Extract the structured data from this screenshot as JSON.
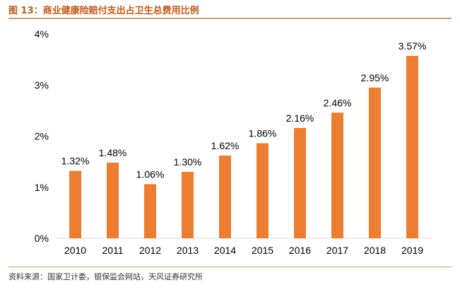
{
  "header": {
    "title": "图 13：商业健康险赔付支出占卫生总费用比例"
  },
  "footer": {
    "source": "资料来源：国家卫计委，银保监会网站，天风证券研究所"
  },
  "colors": {
    "bar": "#ed7d31",
    "title": "#c25a1a",
    "rule": "#c8a070"
  },
  "chart_data": {
    "type": "bar",
    "title": "",
    "xlabel": "",
    "ylabel": "",
    "categories": [
      "2010",
      "2011",
      "2012",
      "2013",
      "2014",
      "2015",
      "2016",
      "2017",
      "2018",
      "2019"
    ],
    "values": [
      1.32,
      1.48,
      1.06,
      1.3,
      1.62,
      1.86,
      2.16,
      2.46,
      2.95,
      3.57
    ],
    "data_labels": [
      "1.32%",
      "1.48%",
      "1.06%",
      "1.30%",
      "1.62%",
      "1.86%",
      "2.16%",
      "2.46%",
      "2.95%",
      "3.57%"
    ],
    "ylim": [
      0,
      4
    ],
    "yticks": [
      0,
      1,
      2,
      3,
      4
    ],
    "ytick_labels": [
      "0%",
      "1%",
      "2%",
      "3%",
      "4%"
    ],
    "grid": false,
    "legend": "none"
  }
}
